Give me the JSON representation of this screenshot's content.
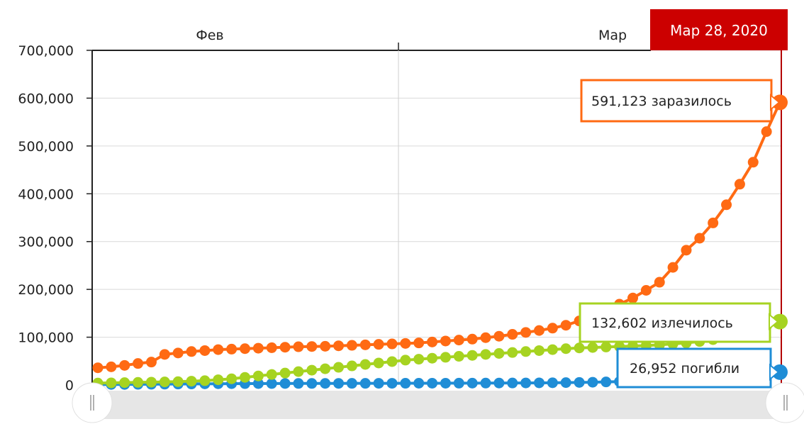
{
  "chart_data": {
    "type": "line",
    "current_date": "Мар 28, 2020",
    "month_labels": [
      "Фев",
      "Мар"
    ],
    "y_ticks": [
      "0",
      "100,000",
      "200,000",
      "300,000",
      "400,000",
      "500,000",
      "600,000",
      "700,000"
    ],
    "ylim": [
      0,
      700000
    ],
    "grid": true,
    "x_start_date": "2020-01-22",
    "x_end_date": "2020-03-28",
    "colors": {
      "confirmed": "#ff6a13",
      "recovered": "#a6d321",
      "deaths": "#1f8dd6",
      "date_badge": "#cc0000"
    },
    "series": [
      {
        "key": "confirmed",
        "name": "заразилось",
        "callout": "591,123 заразилось",
        "values": [
          36000,
          38000,
          41000,
          45000,
          48000,
          64000,
          67000,
          70000,
          72000,
          74000,
          75000,
          76000,
          77000,
          78000,
          79000,
          80000,
          80500,
          81000,
          82000,
          83000,
          84000,
          85000,
          86000,
          87000,
          88000,
          90000,
          92000,
          94000,
          96000,
          99000,
          102000,
          106000,
          110000,
          114000,
          119000,
          125000,
          134000,
          146000,
          157000,
          169000,
          182000,
          198000,
          215000,
          246000,
          282000,
          307000,
          339000,
          377000,
          420000,
          466000,
          530000,
          591123
        ]
      },
      {
        "key": "recovered",
        "name": "излечилось",
        "callout": "132,602 излечилось",
        "values": [
          4000,
          4500,
          5000,
          5500,
          6000,
          6500,
          7000,
          8000,
          9000,
          11000,
          13000,
          16000,
          19000,
          22000,
          25000,
          28000,
          31000,
          34000,
          37000,
          40000,
          43000,
          46000,
          49000,
          52000,
          54000,
          56000,
          58000,
          60000,
          62000,
          64000,
          66000,
          68000,
          70000,
          72000,
          74000,
          76000,
          77500,
          78500,
          79500,
          80500,
          81500,
          82500,
          84000,
          86000,
          88000,
          91000,
          95000,
          100000,
          107000,
          114000,
          123000,
          132602
        ]
      },
      {
        "key": "deaths",
        "name": "погибли",
        "callout": "26,952 погибли",
        "values": [
          1000,
          1100,
          1200,
          1400,
          1600,
          1800,
          2000,
          2200,
          2400,
          2600,
          2800,
          2900,
          3000,
          3100,
          3200,
          3250,
          3300,
          3350,
          3400,
          3450,
          3500,
          3550,
          3600,
          3650,
          3700,
          3750,
          3800,
          3850,
          3900,
          4000,
          4100,
          4200,
          4300,
          4500,
          4700,
          5000,
          5400,
          5800,
          6400,
          7100,
          8000,
          9000,
          10000,
          11400,
          13000,
          14600,
          16500,
          18600,
          21000,
          22800,
          24800,
          26952
        ]
      }
    ]
  }
}
